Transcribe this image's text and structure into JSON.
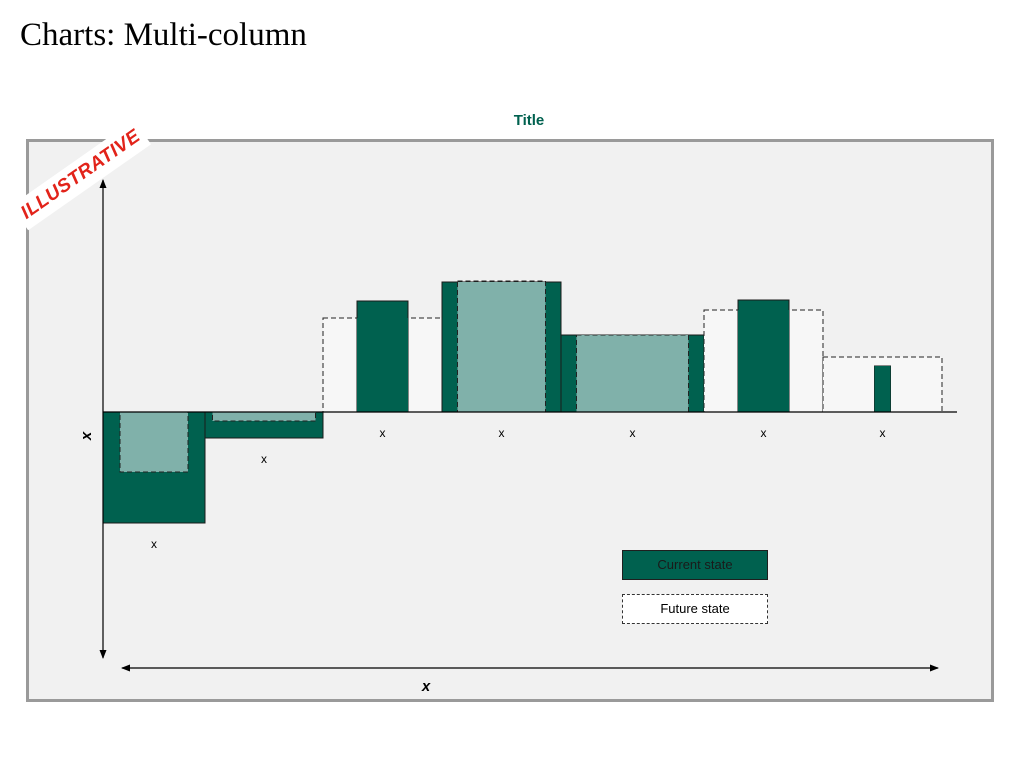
{
  "page": {
    "title": "Charts: Multi-column"
  },
  "stamp": {
    "text": "ILLUSTRATIVE"
  },
  "colors": {
    "current": "#00614f",
    "overlap": "#80b1aa",
    "future_fill": "#f7f7f7",
    "title": "#00614f",
    "stamp": "#e2231a",
    "frame_bg": "#f1f1f1",
    "frame_border": "#9a9a9a"
  },
  "chart_data": {
    "type": "bar",
    "title": "Title",
    "xlabel": "x",
    "ylabel": "x",
    "categories": [
      "x",
      "x",
      "x",
      "x",
      "x",
      "x",
      "x"
    ],
    "series": [
      {
        "name": "Current state",
        "values": [
          -111,
          -26,
          111,
          130,
          77,
          112,
          46
        ],
        "widths": [
          102,
          118,
          51,
          119,
          143,
          51,
          16
        ]
      },
      {
        "name": "Future state",
        "values": [
          -60,
          -9,
          94,
          131,
          77,
          102,
          55
        ],
        "widths": [
          68,
          103,
          119,
          88,
          112,
          119,
          119
        ]
      }
    ],
    "grid": false,
    "legend_position": "bottom-right"
  }
}
